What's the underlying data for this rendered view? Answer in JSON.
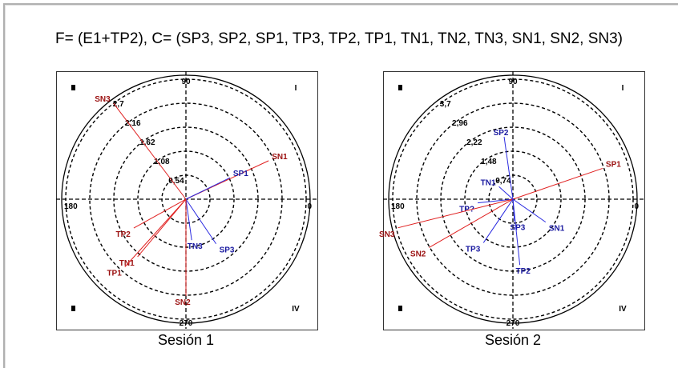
{
  "title": "F= (E1+TP2), C= (SP3, SP2, SP1, TP3, TP2, TP1, TN1, TN2, TN3, SN1, SN2, SN3)",
  "colors": {
    "positive": "#e02020",
    "positive_label": "#9b1010",
    "negative": "#2a2ae0",
    "negative_label": "#1a1aa0"
  },
  "chart_data": [
    {
      "type": "polar-vector",
      "caption": "Sesión 1",
      "rings": [
        "0,54",
        "1,08",
        "1,62",
        "2,16",
        "2,7"
      ],
      "ring_max": 2.7,
      "angle_labels": [
        "90",
        "180",
        "0",
        "270"
      ],
      "quadrants": [
        "I",
        "II",
        "III",
        "IV"
      ],
      "vectors": [
        {
          "label": "SN3",
          "group": "positive",
          "angle": 127,
          "radius": 2.7
        },
        {
          "label": "SN1",
          "group": "positive",
          "angle": 25,
          "radius": 2.05
        },
        {
          "label": "SP1",
          "group": "negative",
          "angle": 26,
          "radius": 1.1
        },
        {
          "label": "TP2",
          "group": "positive",
          "angle": 209,
          "radius": 1.34
        },
        {
          "label": "TN1",
          "group": "positive",
          "angle": 230,
          "radius": 1.69
        },
        {
          "label": "TP1",
          "group": "positive",
          "angle": 228,
          "radius": 2.05
        },
        {
          "label": "TN3",
          "group": "negative",
          "angle": 278,
          "radius": 0.93
        },
        {
          "label": "SP3",
          "group": "negative",
          "angle": 304,
          "radius": 1.21
        },
        {
          "label": "SN2",
          "group": "positive",
          "angle": 270,
          "radius": 2.18
        }
      ]
    },
    {
      "type": "polar-vector",
      "caption": "Sesión 2",
      "rings": [
        "0,74",
        "1,48",
        "2,22",
        "2,96",
        "3,7"
      ],
      "ring_max": 3.7,
      "angle_labels": [
        "90",
        "180",
        "0",
        "270"
      ],
      "quadrants": [
        "I",
        "II",
        "III",
        "IV"
      ],
      "vectors": [
        {
          "label": "SP1",
          "group": "positive",
          "angle": 19,
          "radius": 2.92
        },
        {
          "label": "SP2",
          "group": "negative",
          "angle": 98,
          "radius": 1.94
        },
        {
          "label": "TN1",
          "group": "negative",
          "angle": 138,
          "radius": 0.58
        },
        {
          "label": "TP?",
          "group": "negative",
          "angle": 186,
          "radius": 1.09
        },
        {
          "label": "SN3",
          "group": "positive",
          "angle": 194,
          "radius": 3.65
        },
        {
          "label": "SN2",
          "group": "positive",
          "angle": 210,
          "radius": 2.98
        },
        {
          "label": "TP3",
          "group": "negative",
          "angle": 236,
          "radius": 1.62
        },
        {
          "label": "SP3",
          "group": "negative",
          "angle": 274,
          "radius": 0.68
        },
        {
          "label": "SN1",
          "group": "negative",
          "angle": 325,
          "radius": 1.23
        },
        {
          "label": "TP2",
          "group": "negative",
          "angle": 276,
          "radius": 2.04
        }
      ]
    }
  ]
}
